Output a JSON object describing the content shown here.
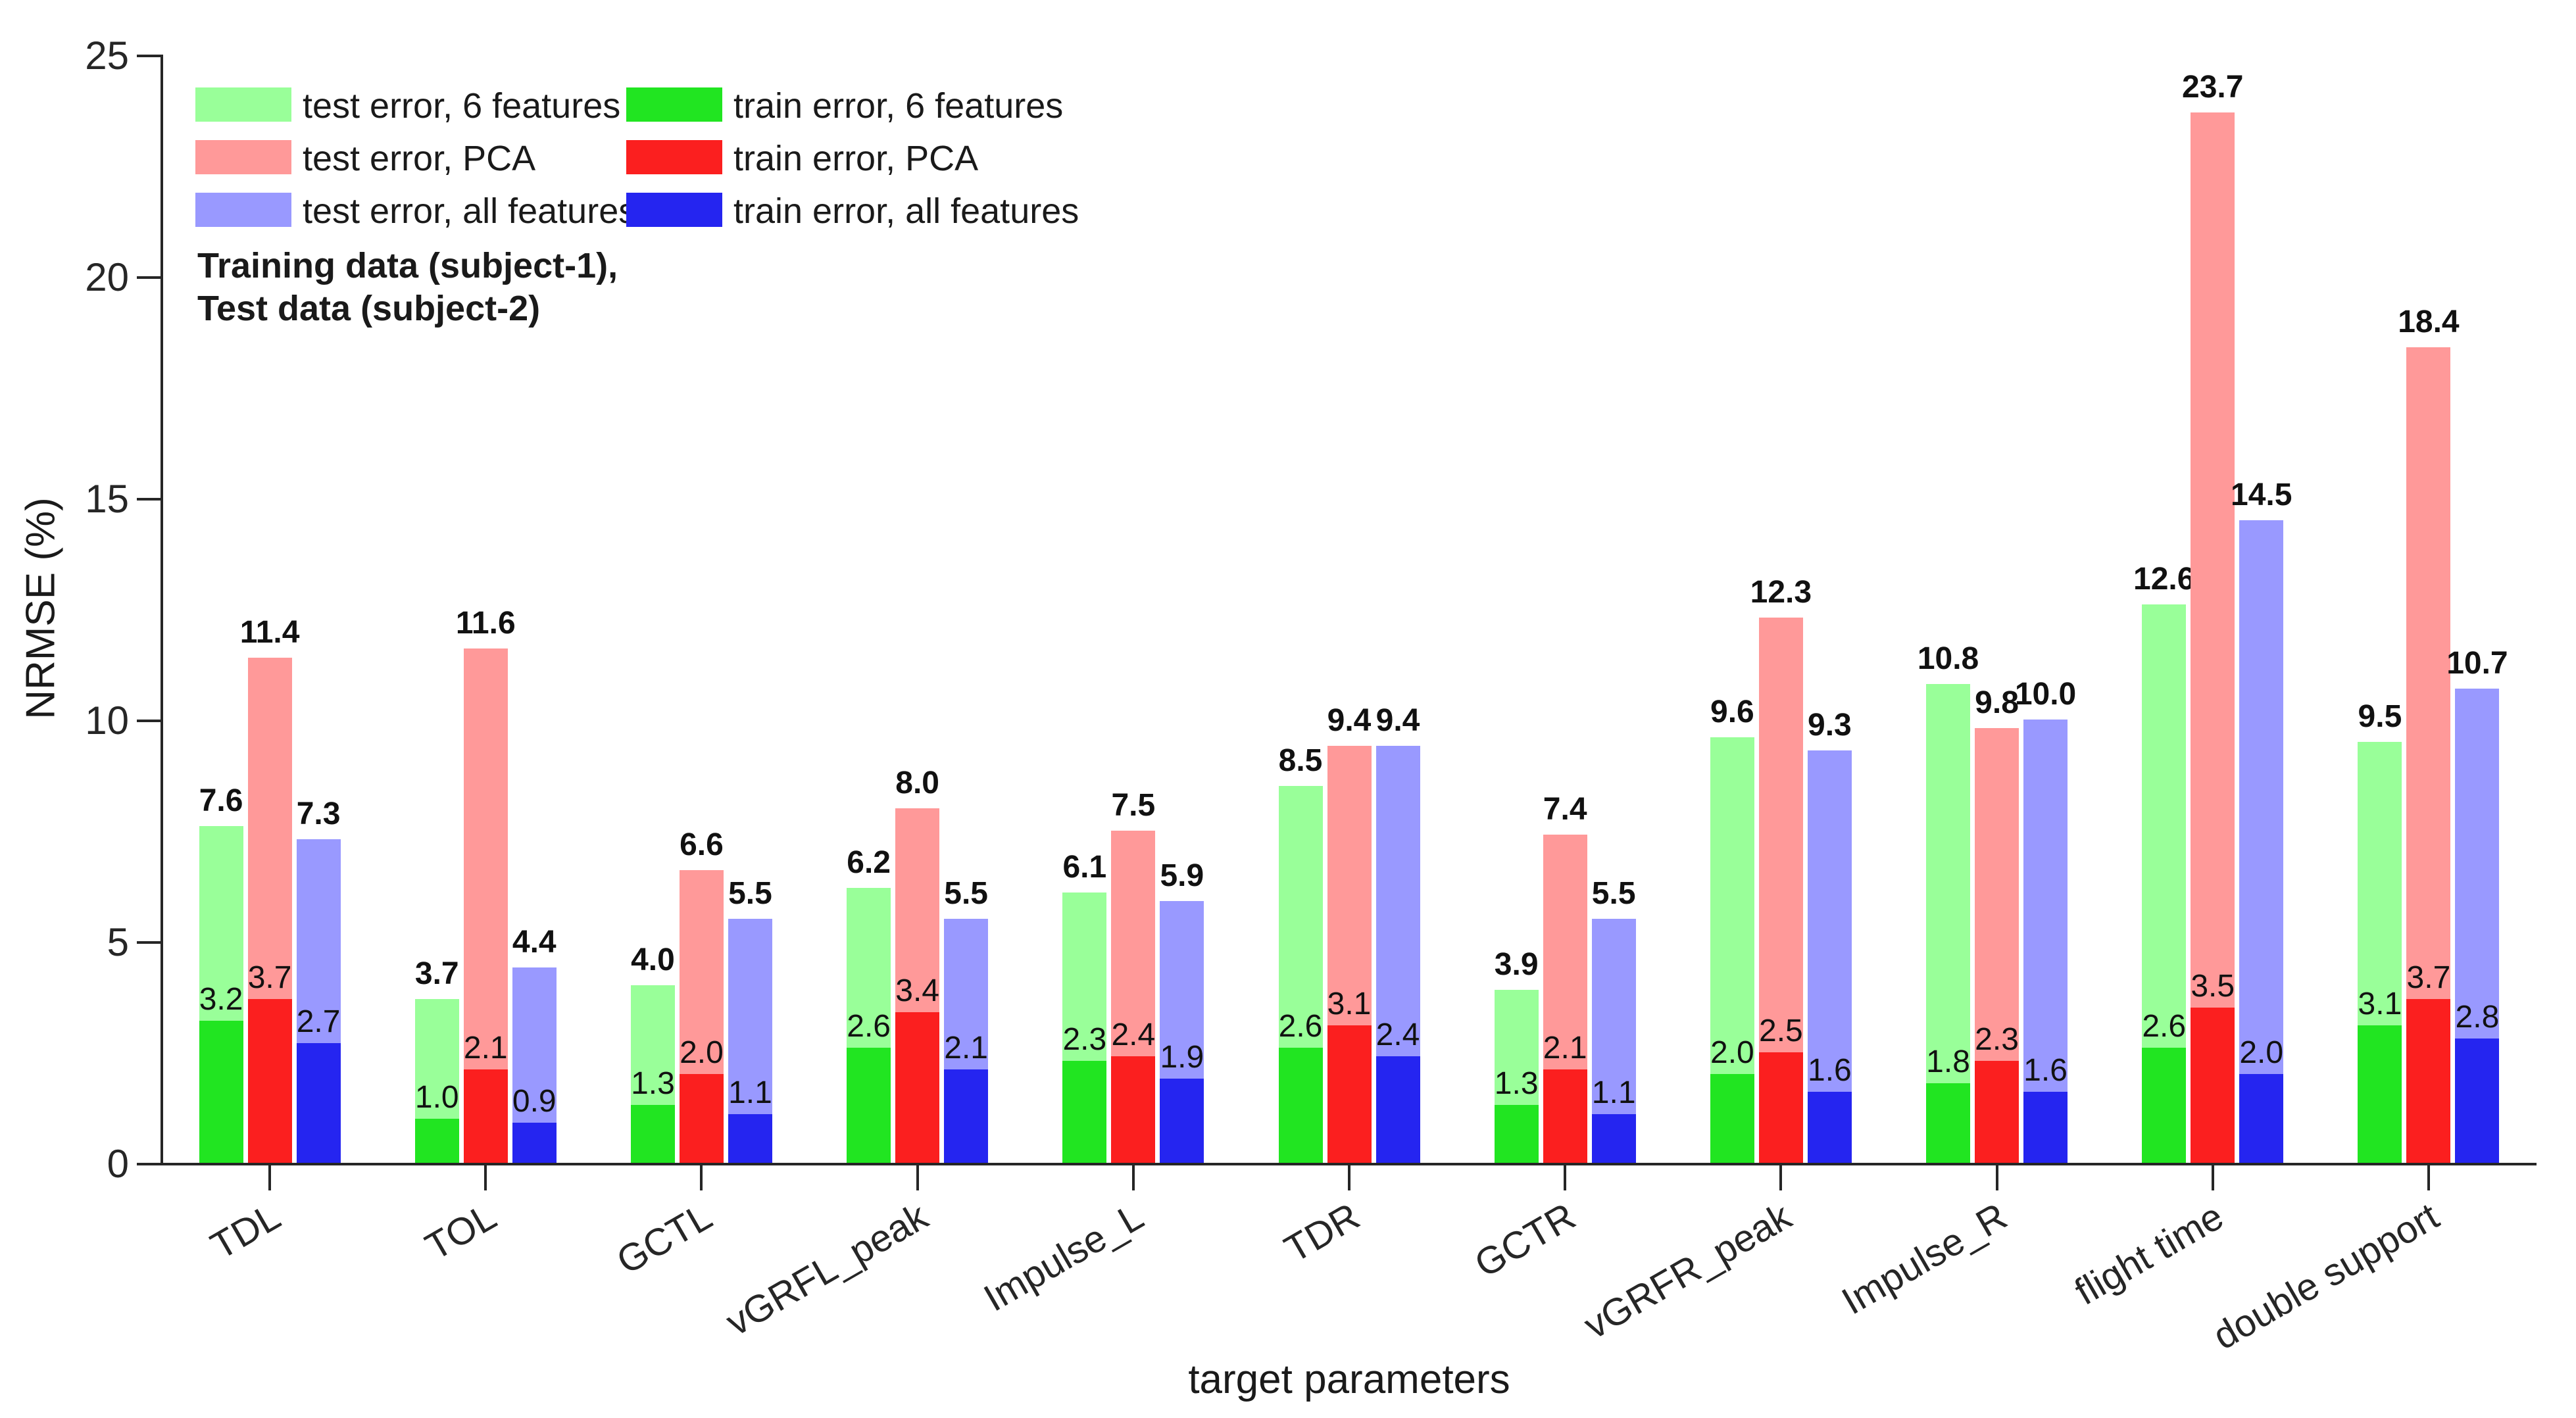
{
  "figure": {
    "ylabel": "NRMSE (%)",
    "xlabel": "target parameters",
    "annotation_line1": "Training data (subject-1),",
    "annotation_line2": "Test data (subject-2)",
    "axis_color": "#262626",
    "background_color": "#ffffff"
  },
  "legend": {
    "columns": [
      {
        "items": [
          {
            "label": "test error, 6 features",
            "color": "#99ff99"
          },
          {
            "label": "test error, PCA",
            "color": "#ff9999"
          },
          {
            "label": "test error, all features",
            "color": "#9999ff"
          }
        ]
      },
      {
        "items": [
          {
            "label": "train error, 6 features",
            "color": "#21e521"
          },
          {
            "label": "train error, PCA",
            "color": "#fb1f1f"
          },
          {
            "label": "train error, all features",
            "color": "#2525f0"
          }
        ]
      }
    ]
  },
  "chart_data": {
    "type": "bar",
    "title": "",
    "xlabel": "target parameters",
    "ylabel": "NRMSE (%)",
    "ylim": [
      0,
      25
    ],
    "yticks": [
      0,
      5,
      10,
      15,
      20,
      25
    ],
    "grid": false,
    "legend_position": "top-left",
    "categories": [
      "TDL",
      "TOL",
      "GCTL",
      "vGRFL_peak",
      "Impulse_L",
      "TDR",
      "GCTR",
      "vGRFR_peak",
      "Impulse_R",
      "flight time",
      "double support"
    ],
    "series": [
      {
        "name": "test error, 6 features",
        "role": "test",
        "color": "#99ff99",
        "values": [
          7.6,
          3.7,
          4.0,
          6.2,
          6.1,
          8.5,
          3.9,
          9.6,
          10.8,
          12.6,
          9.5
        ]
      },
      {
        "name": "test error, PCA",
        "role": "test",
        "color": "#ff9999",
        "values": [
          11.4,
          11.6,
          6.6,
          8.0,
          7.5,
          9.4,
          7.4,
          12.3,
          9.8,
          23.7,
          18.4
        ]
      },
      {
        "name": "test error, all features",
        "role": "test",
        "color": "#9999ff",
        "values": [
          7.3,
          4.4,
          5.5,
          5.5,
          5.9,
          9.4,
          5.5,
          9.3,
          10.0,
          14.5,
          10.7
        ]
      },
      {
        "name": "train error, 6 features",
        "role": "train",
        "color": "#21e521",
        "values": [
          3.2,
          1.0,
          1.3,
          2.6,
          2.3,
          2.6,
          1.3,
          2.0,
          1.8,
          2.6,
          3.1
        ]
      },
      {
        "name": "train error, PCA",
        "role": "train",
        "color": "#fb1f1f",
        "values": [
          3.7,
          2.1,
          2.0,
          3.4,
          2.4,
          3.1,
          2.1,
          2.5,
          2.3,
          3.5,
          3.7
        ]
      },
      {
        "name": "train error, all features",
        "role": "train",
        "color": "#2525f0",
        "values": [
          2.7,
          0.9,
          1.1,
          2.1,
          1.9,
          2.4,
          1.1,
          1.6,
          1.6,
          2.0,
          2.8
        ]
      }
    ]
  }
}
